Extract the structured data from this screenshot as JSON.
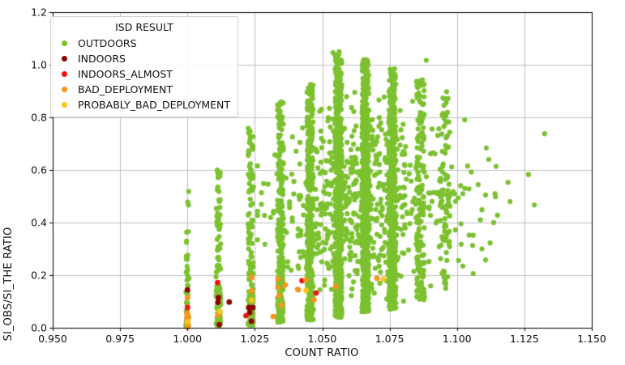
{
  "legend": {
    "title": "ISD RESULT"
  },
  "axes": {
    "x_tick_labels": [
      "0.950",
      "0.975",
      "1.000",
      "1.025",
      "1.050",
      "1.075",
      "1.100",
      "1.125",
      "1.150"
    ],
    "y_tick_labels": [
      "0.0",
      "0.2",
      "0.4",
      "0.6",
      "0.8",
      "1.0",
      "1.2"
    ]
  },
  "colors": {
    "grid": "#bfbfbf",
    "spine": "#000000",
    "background": "#ffffff"
  },
  "chart_data": {
    "type": "scatter",
    "title": "",
    "xlabel": "COUNT RATIO",
    "ylabel": "SI_OBS/SI_THE RATIO",
    "xlim": [
      0.95,
      1.15
    ],
    "ylim": [
      0.0,
      1.2
    ],
    "x_ticks": [
      0.95,
      0.975,
      1.0,
      1.025,
      1.05,
      1.075,
      1.1,
      1.125,
      1.15
    ],
    "y_ticks": [
      0.0,
      0.2,
      0.4,
      0.6,
      0.8,
      1.0,
      1.2
    ],
    "grid": true,
    "legend_position": "upper-left",
    "legend_title": "ISD RESULT",
    "marker_radius_px": 3.1,
    "seed": 1337,
    "series": [
      {
        "name": "OUTDOORS",
        "color": "#7cc12f",
        "note": "dense vertical stripes of points at discrete count-ratio values plus diffuse cloud; y from ~0 to ~1.05",
        "distribution": {
          "stripes": [
            {
              "x": 1.0,
              "xj": 0.0006,
              "n": 60,
              "y0": 0.005,
              "y1": 0.58,
              "pw": 2.6
            },
            {
              "x": 1.0115,
              "xj": 0.0009,
              "n": 110,
              "y0": 0.008,
              "y1": 0.6,
              "pw": 2.0
            },
            {
              "x": 1.0235,
              "xj": 0.001,
              "n": 150,
              "y0": 0.01,
              "y1": 0.78,
              "pw": 1.7
            },
            {
              "x": 1.0345,
              "xj": 0.0011,
              "n": 230,
              "y0": 0.02,
              "y1": 0.86,
              "pw": 1.45
            },
            {
              "x": 1.0455,
              "xj": 0.0012,
              "n": 380,
              "y0": 0.03,
              "y1": 0.93,
              "pw": 1.25
            },
            {
              "x": 1.056,
              "xj": 0.0013,
              "n": 520,
              "y0": 0.04,
              "y1": 1.05,
              "pw": 1.15
            },
            {
              "x": 1.066,
              "xj": 0.0013,
              "n": 560,
              "y0": 0.06,
              "y1": 1.02,
              "pw": 1.1
            },
            {
              "x": 1.076,
              "xj": 0.0013,
              "n": 470,
              "y0": 0.07,
              "y1": 0.99,
              "pw": 1.1
            },
            {
              "x": 1.0865,
              "xj": 0.0015,
              "n": 140,
              "y0": 0.1,
              "y1": 0.95,
              "pw": 1.1
            },
            {
              "x": 1.0955,
              "xj": 0.0018,
              "n": 80,
              "y0": 0.15,
              "y1": 0.9,
              "pw": 1.05
            }
          ],
          "clouds": [
            {
              "n": 650,
              "xc": 1.063,
              "xs": 0.017,
              "x0": 1.026,
              "x1": 1.115,
              "yc": 0.5,
              "ys": 0.42,
              "y0": 0.04,
              "y1": 1.0
            },
            {
              "n": 30,
              "xc": 1.105,
              "xs": 0.012,
              "x0": 1.085,
              "x1": 1.128,
              "yc": 0.55,
              "ys": 0.3,
              "y0": 0.2,
              "y1": 0.97
            }
          ]
        },
        "points": [
          [
            1.054,
            1.046
          ],
          [
            1.0886,
            1.017
          ],
          [
            1.1325,
            0.738
          ],
          [
            1.1287,
            0.467
          ],
          [
            1.1058,
            0.313
          ],
          [
            1.1106,
            0.258
          ]
        ]
      },
      {
        "name": "INDOORS",
        "color": "#8b0000",
        "points": [
          [
            1.0,
            0.144
          ],
          [
            1.0115,
            0.115
          ],
          [
            1.0113,
            0.097
          ],
          [
            1.0118,
            0.012
          ],
          [
            1.0155,
            0.098
          ],
          [
            1.0228,
            0.077
          ],
          [
            1.0243,
            0.077
          ],
          [
            1.0231,
            0.058
          ],
          [
            1.0237,
            0.025
          ]
        ]
      },
      {
        "name": "INDOORS_ALMOST",
        "color": "#f31212",
        "points": [
          [
            1.0,
            0.077
          ],
          [
            1.0112,
            0.172
          ],
          [
            1.0217,
            0.046
          ],
          [
            1.0425,
            0.179
          ],
          [
            1.0477,
            0.132
          ]
        ]
      },
      {
        "name": "BAD_DEPLOYMENT",
        "color": "#f79420",
        "points": [
          [
            1.0,
            0.115
          ],
          [
            0.9998,
            0.055
          ],
          [
            1.0002,
            0.047
          ],
          [
            0.9998,
            0.038
          ],
          [
            1.0002,
            0.029
          ],
          [
            0.9998,
            0.019
          ],
          [
            1.0002,
            0.01
          ],
          [
            1.0,
            0.002
          ],
          [
            1.0114,
            0.048
          ],
          [
            1.0238,
            0.191
          ],
          [
            1.0238,
            0.14
          ],
          [
            1.0336,
            0.185
          ],
          [
            1.0336,
            0.154
          ],
          [
            1.0363,
            0.163
          ],
          [
            1.034,
            0.123
          ],
          [
            1.0349,
            0.086
          ],
          [
            1.0318,
            0.043
          ],
          [
            1.0411,
            0.145
          ],
          [
            1.0439,
            0.182
          ],
          [
            1.0469,
            0.106
          ],
          [
            1.055,
            0.157
          ],
          [
            1.0703,
            0.188
          ]
        ]
      },
      {
        "name": "PROBABLY_BAD_DEPLOYMENT",
        "color": "#ffc51d",
        "points": [
          [
            1.012,
            0.062
          ],
          [
            1.0238,
            0.105
          ],
          [
            1.044,
            0.142
          ],
          [
            1.0727,
            0.185
          ],
          [
            1.0001,
            0.024
          ]
        ]
      }
    ]
  }
}
